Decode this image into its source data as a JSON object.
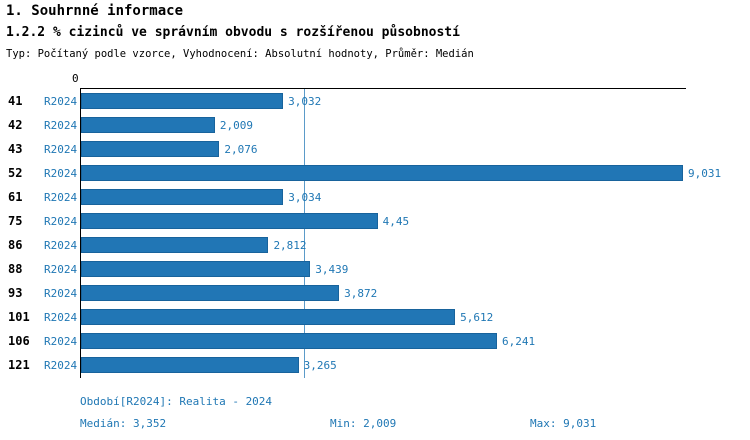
{
  "header": {
    "title": "1. Souhrnné informace",
    "subtitle": "1.2.2 % cizinců ve správním obvodu s rozšířenou působností",
    "meta": "Typ: Počítaný podle vzorce, Vyhodnocení: Absolutní hodnoty, Průměr: Medián"
  },
  "chart_data": {
    "type": "bar",
    "orientation": "horizontal",
    "title": "1.2.2 % cizinců ve správním obvodu s rozšířenou působností",
    "categories": [
      "41",
      "42",
      "43",
      "52",
      "61",
      "75",
      "86",
      "88",
      "93",
      "101",
      "106",
      "121"
    ],
    "series": [
      {
        "name": "R2024",
        "values": [
          3.032,
          2.009,
          2.076,
          9.031,
          3.034,
          4.45,
          2.812,
          3.439,
          3.872,
          5.612,
          6.241,
          3.265
        ],
        "value_labels": [
          "3,032",
          "2,009",
          "2,076",
          "9,031",
          "3,034",
          "4,45",
          "2,812",
          "3,439",
          "3,872",
          "5,612",
          "6,241",
          "3,265"
        ]
      }
    ],
    "xlim": [
      0,
      9.031
    ],
    "zero_tick_label": "0",
    "median_value": 3.352,
    "bar_color": "#2176b5",
    "grid": false,
    "legend_position": "none"
  },
  "footer": {
    "period": "Období[R2024]: Realita - 2024",
    "median": "Medián: 3,352",
    "min": "Min: 2,009",
    "max": "Max: 9,031"
  },
  "colors": {
    "bar": "#2176b5",
    "accent_text": "#1f77b4",
    "axis": "#000000",
    "median_line": "#5b9bc9"
  }
}
